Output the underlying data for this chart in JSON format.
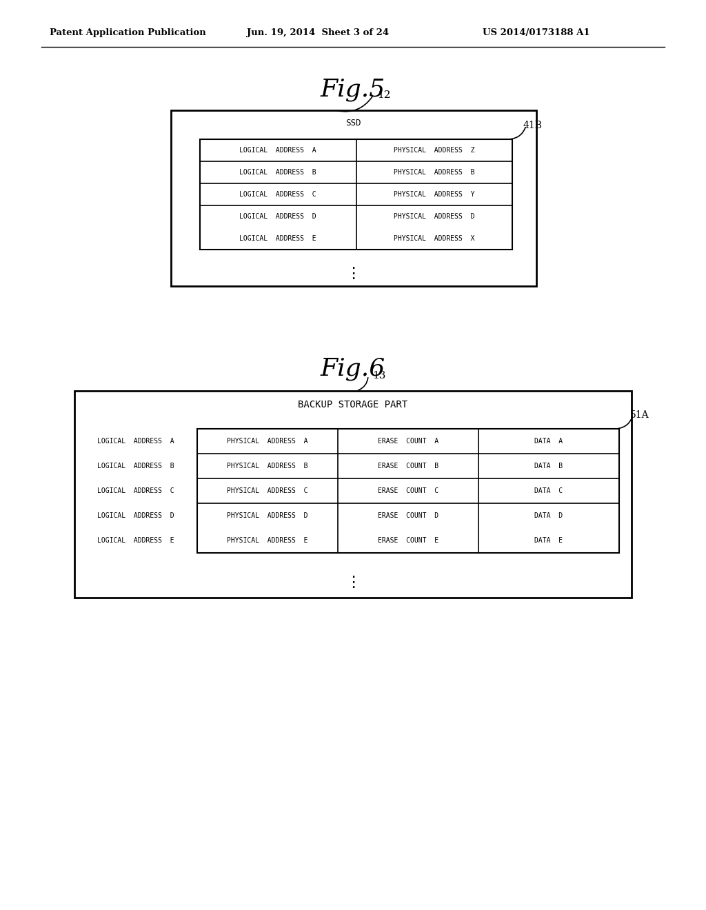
{
  "header_text": "Patent Application Publication",
  "header_date": "Jun. 19, 2014  Sheet 3 of 24",
  "header_patent": "US 2014/0173188 A1",
  "fig5_title": "Fig.5",
  "fig5_label": "12",
  "fig5_inner_label": "41B",
  "fig5_box_title": "SSD",
  "fig5_rows": [
    [
      "LOGICAL  ADDRESS  A",
      "PHYSICAL  ADDRESS  Z"
    ],
    [
      "LOGICAL  ADDRESS  B",
      "PHYSICAL  ADDRESS  B"
    ],
    [
      "LOGICAL  ADDRESS  C",
      "PHYSICAL  ADDRESS  Y"
    ],
    [
      "LOGICAL  ADDRESS  D",
      "PHYSICAL  ADDRESS  D"
    ],
    [
      "LOGICAL  ADDRESS  E",
      "PHYSICAL  ADDRESS  X"
    ]
  ],
  "fig6_title": "Fig.6",
  "fig6_label": "13",
  "fig6_inner_label": "51A",
  "fig6_box_title": "BACKUP STORAGE PART",
  "fig6_rows": [
    [
      "LOGICAL  ADDRESS  A",
      "PHYSICAL  ADDRESS  A",
      "ERASE  COUNT  A",
      "DATA  A"
    ],
    [
      "LOGICAL  ADDRESS  B",
      "PHYSICAL  ADDRESS  B",
      "ERASE  COUNT  B",
      "DATA  B"
    ],
    [
      "LOGICAL  ADDRESS  C",
      "PHYSICAL  ADDRESS  C",
      "ERASE  COUNT  C",
      "DATA  C"
    ],
    [
      "LOGICAL  ADDRESS  D",
      "PHYSICAL  ADDRESS  D",
      "ERASE  COUNT  D",
      "DATA  D"
    ],
    [
      "LOGICAL  ADDRESS  E",
      "PHYSICAL  ADDRESS  E",
      "ERASE  COUNT  E",
      "DATA  E"
    ]
  ],
  "bg_color": "#ffffff",
  "text_color": "#000000"
}
